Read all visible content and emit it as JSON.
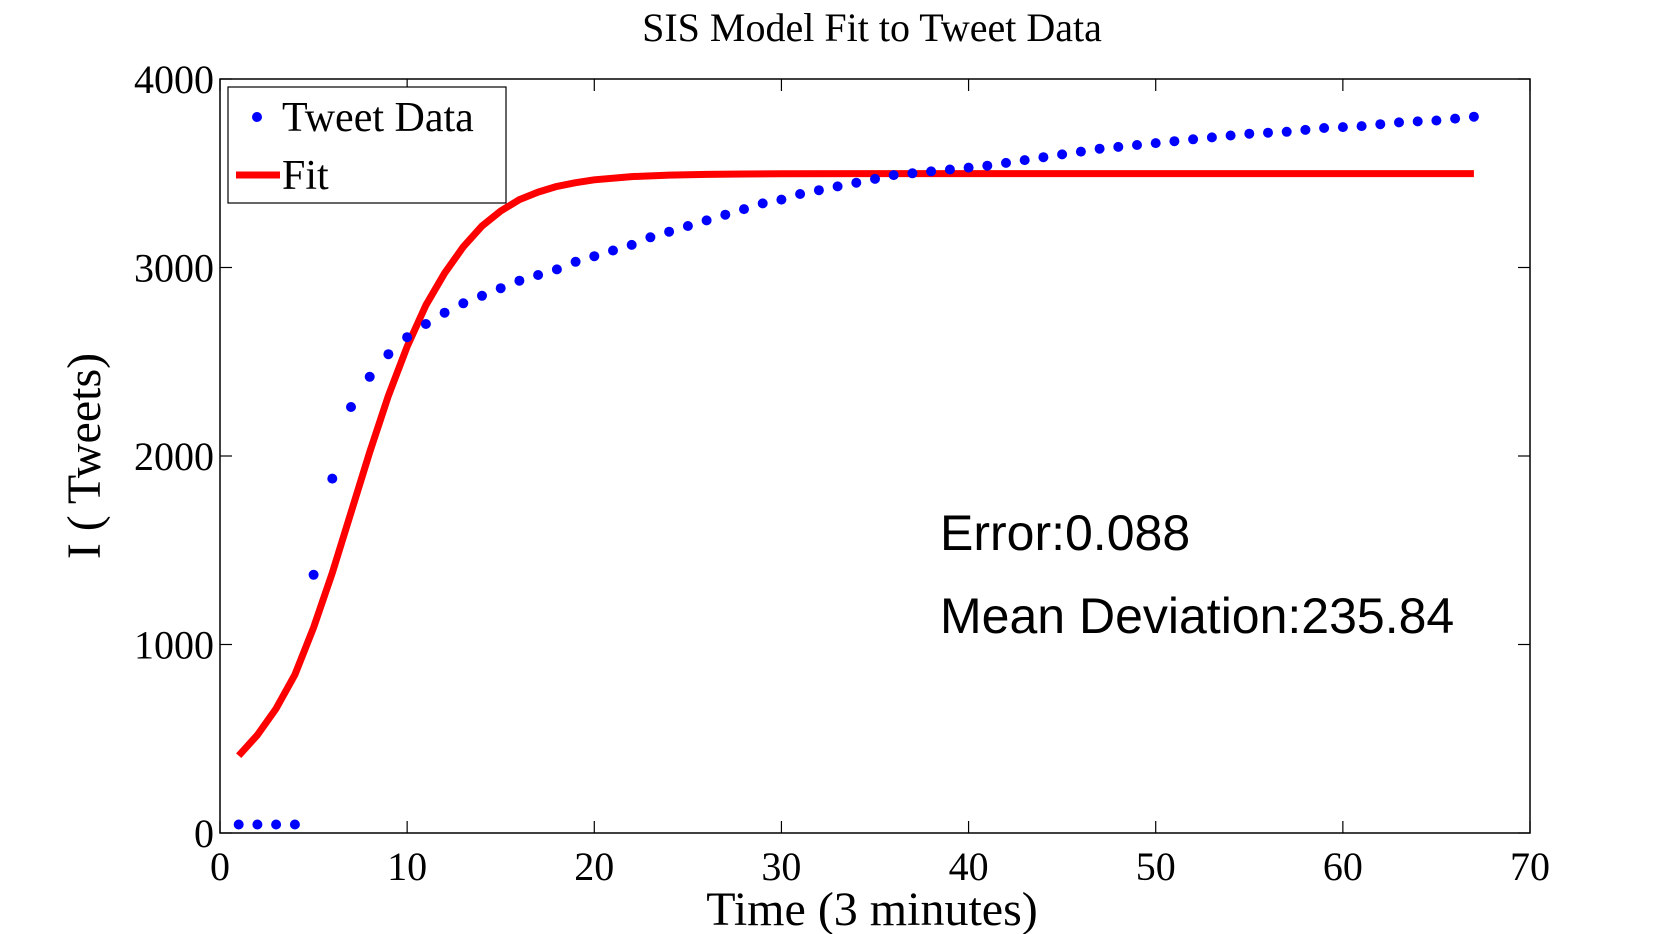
{
  "chart_data": {
    "type": "line",
    "title": "SIS Model Fit to Tweet Data",
    "xlabel": "Time (3 minutes)",
    "ylabel": "I ( Tweets)",
    "xlim": [
      0,
      70
    ],
    "ylim": [
      0,
      4000
    ],
    "xticks": [
      0,
      10,
      20,
      30,
      40,
      50,
      60,
      70
    ],
    "yticks": [
      0,
      1000,
      2000,
      3000,
      4000
    ],
    "grid": false,
    "legend_position": "top-left",
    "annotations": [
      "Error:0.088",
      "Mean Deviation:235.84"
    ],
    "series": [
      {
        "name": "Tweet Data",
        "style": "dots",
        "color": "#0000ff",
        "x": [
          1,
          2,
          3,
          4,
          5,
          6,
          7,
          8,
          9,
          10,
          11,
          12,
          13,
          14,
          15,
          16,
          17,
          18,
          19,
          20,
          21,
          22,
          23,
          24,
          25,
          26,
          27,
          28,
          29,
          30,
          31,
          32,
          33,
          34,
          35,
          36,
          37,
          38,
          39,
          40,
          41,
          42,
          43,
          44,
          45,
          46,
          47,
          48,
          49,
          50,
          51,
          52,
          53,
          54,
          55,
          56,
          57,
          58,
          59,
          60,
          61,
          62,
          63,
          64,
          65,
          66,
          67
        ],
        "y": [
          45,
          45,
          45,
          45,
          1370,
          1880,
          2260,
          2420,
          2540,
          2630,
          2700,
          2760,
          2810,
          2850,
          2890,
          2930,
          2960,
          2990,
          3030,
          3060,
          3090,
          3120,
          3160,
          3190,
          3220,
          3250,
          3280,
          3310,
          3340,
          3360,
          3390,
          3410,
          3430,
          3450,
          3470,
          3490,
          3500,
          3510,
          3520,
          3530,
          3540,
          3555,
          3570,
          3585,
          3600,
          3615,
          3630,
          3640,
          3650,
          3660,
          3670,
          3680,
          3690,
          3700,
          3710,
          3715,
          3720,
          3730,
          3740,
          3745,
          3750,
          3760,
          3770,
          3775,
          3780,
          3790,
          3800
        ]
      },
      {
        "name": "Fit",
        "style": "line",
        "color": "#ff0000",
        "x": [
          1,
          2,
          3,
          4,
          5,
          6,
          7,
          8,
          9,
          10,
          11,
          12,
          13,
          14,
          15,
          16,
          17,
          18,
          19,
          20,
          22,
          24,
          26,
          28,
          30,
          35,
          40,
          45,
          50,
          55,
          60,
          67
        ],
        "y": [
          410,
          520,
          660,
          840,
          1090,
          1380,
          1700,
          2020,
          2320,
          2580,
          2800,
          2970,
          3110,
          3220,
          3300,
          3360,
          3400,
          3430,
          3450,
          3465,
          3482,
          3490,
          3494,
          3496,
          3497,
          3498,
          3498,
          3498,
          3498,
          3498,
          3498,
          3498
        ]
      }
    ]
  }
}
